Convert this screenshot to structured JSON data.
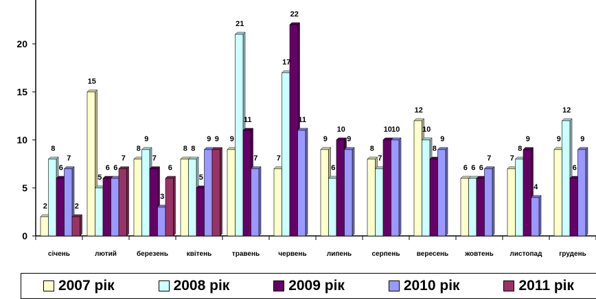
{
  "chart_data": {
    "type": "bar",
    "categories": [
      "січень",
      "лютий",
      "березень",
      "квітень",
      "травень",
      "червень",
      "липень",
      "серпень",
      "вересень",
      "жовтень",
      "листопад",
      "грудень"
    ],
    "series": [
      {
        "name": "2007 рік",
        "values": [
          2,
          15,
          8,
          8,
          9,
          7,
          9,
          8,
          12,
          6,
          7,
          9
        ],
        "color": "#FFFFCC"
      },
      {
        "name": "2008 рік",
        "values": [
          8,
          5,
          9,
          8,
          21,
          17,
          6,
          7,
          10,
          6,
          8,
          12
        ],
        "color": "#CCFFFF"
      },
      {
        "name": "2009 рік",
        "values": [
          6,
          6,
          7,
          5,
          11,
          22,
          10,
          10,
          8,
          6,
          9,
          6
        ],
        "color": "#660066"
      },
      {
        "name": "2010 рік",
        "values": [
          7,
          6,
          3,
          9,
          7,
          11,
          9,
          10,
          9,
          7,
          4,
          9
        ],
        "color": "#9999FF"
      },
      {
        "name": "2011 рік",
        "values": [
          2,
          7,
          6,
          9,
          null,
          null,
          null,
          null,
          null,
          null,
          null,
          null
        ],
        "color": "#993366"
      }
    ],
    "data_labels": [
      [
        "2",
        "8",
        "6",
        "7",
        "2"
      ],
      [
        "15",
        "5",
        "6",
        "6",
        "7"
      ],
      [
        "8",
        "9",
        "7",
        "3",
        "6"
      ],
      [
        "8",
        "8",
        "5",
        "9",
        "9"
      ],
      [
        "9",
        "21",
        "11",
        "7",
        ""
      ],
      [
        "7",
        "17",
        "22",
        "11",
        ""
      ],
      [
        "9",
        "6",
        "10",
        "9",
        ""
      ],
      [
        "8",
        "7",
        "10",
        "10",
        ""
      ],
      [
        "12",
        "10",
        "8",
        "9",
        ""
      ],
      [
        "6",
        "6",
        "6",
        "7",
        ""
      ],
      [
        "7",
        "8",
        "9",
        "4",
        ""
      ],
      [
        "9",
        "12",
        "6",
        "9",
        ""
      ]
    ],
    "y_ticks": [
      "0",
      "5",
      "10",
      "15",
      "20"
    ],
    "ylim": [
      0,
      25
    ],
    "title": "",
    "xlabel": "",
    "ylabel": "",
    "grid": false,
    "legend_position": "bottom"
  }
}
